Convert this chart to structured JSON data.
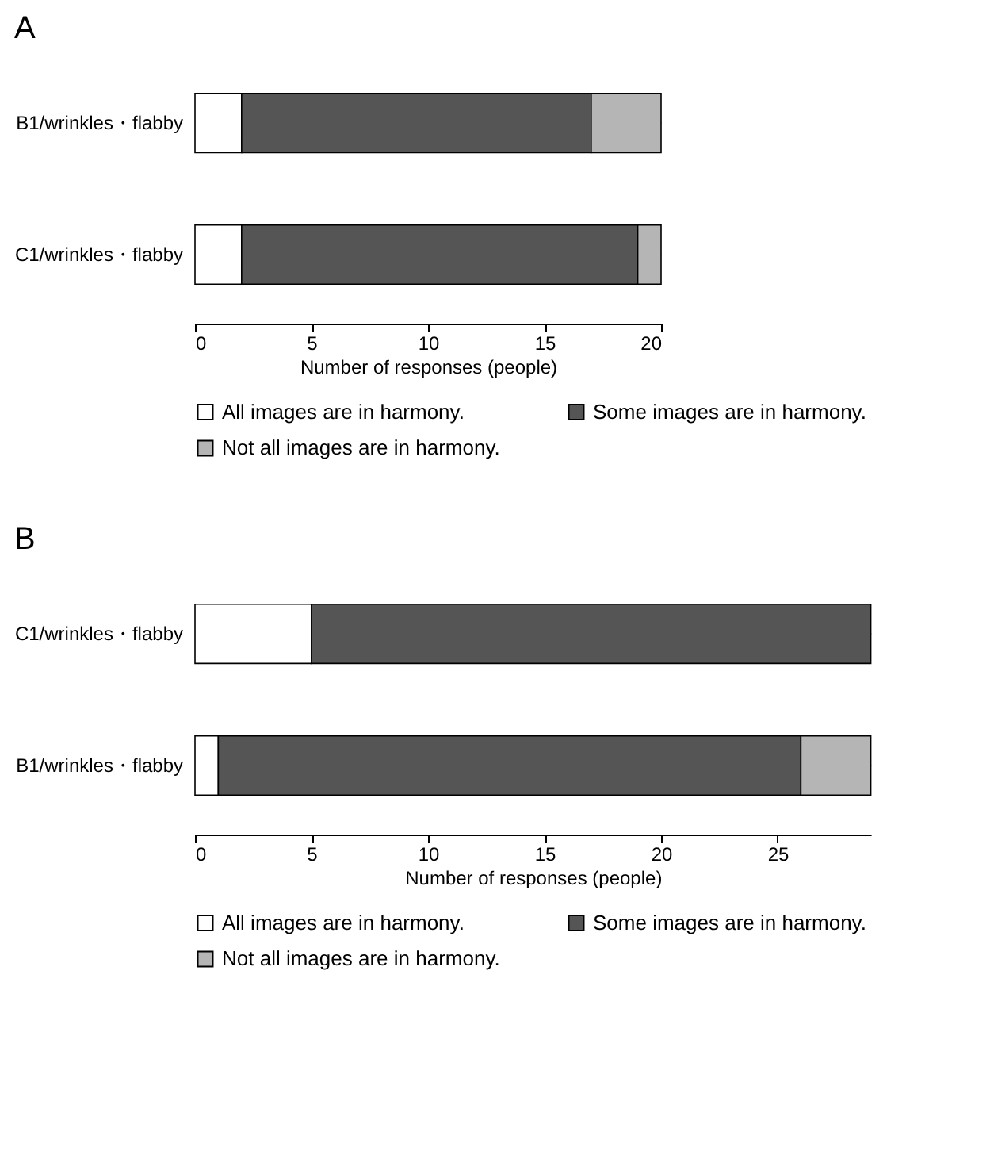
{
  "chart_data": [
    {
      "type": "bar",
      "title": "A",
      "orientation": "horizontal",
      "stacked": true,
      "categories": [
        "B1/wrinkles・flabby",
        "C1/wrinkles・flabby"
      ],
      "series": [
        {
          "name": "All images are in harmony.",
          "color": "#ffffff",
          "values": [
            2,
            2
          ]
        },
        {
          "name": "Some images are in harmony.",
          "color": "#555555",
          "values": [
            15,
            17
          ]
        },
        {
          "name": "Not all images are in harmony.",
          "color": "#b5b5b5",
          "values": [
            3,
            1
          ]
        }
      ],
      "xlim": [
        0,
        20
      ],
      "xticks": [
        0,
        5,
        10,
        15,
        20
      ],
      "xlabel": "Number of responses (people)",
      "legend": "bottom",
      "grid": false
    },
    {
      "type": "bar",
      "title": "B",
      "orientation": "horizontal",
      "stacked": true,
      "categories": [
        "C1/wrinkles・flabby",
        "B1/wrinkles・flabby"
      ],
      "series": [
        {
          "name": "All images are in harmony.",
          "color": "#ffffff",
          "values": [
            5,
            1
          ]
        },
        {
          "name": "Some images are in harmony.",
          "color": "#555555",
          "values": [
            24,
            25
          ]
        },
        {
          "name": "Not all images are in harmony.",
          "color": "#b5b5b5",
          "values": [
            null,
            3
          ]
        }
      ],
      "xlim": [
        0,
        29
      ],
      "xticks": [
        0,
        5,
        10,
        15,
        20,
        25
      ],
      "xlabel": "Number of responses (people)",
      "legend": "bottom",
      "grid": false
    }
  ]
}
